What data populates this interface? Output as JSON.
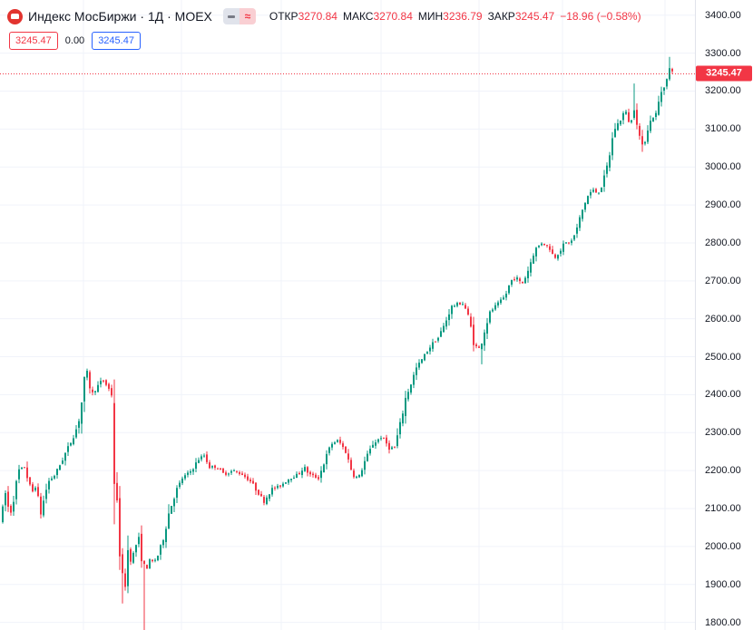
{
  "legend": {
    "icon": "moex-logo-icon",
    "symbol_title": "Индекс МосБиржи · 1Д · MOEX",
    "open_label": "ОТКР",
    "open_value": "3270.84",
    "high_label": "МАКС",
    "high_value": "3270.84",
    "low_label": "МИН",
    "low_value": "3236.79",
    "close_label": "ЗАКР",
    "close_value": "3245.47",
    "change_text": "−18.96 (−0.58%)",
    "box_left": "3245.47",
    "plain_value": "0.00",
    "box_right": "3245.47"
  },
  "colors": {
    "up": "#089981",
    "down": "#f23645",
    "grid": "#f0f3fa",
    "last_price_line": "#f23645"
  },
  "chart_data": {
    "type": "candlestick",
    "title": "Индекс МосБиржи",
    "interval": "1Д",
    "exchange": "MOEX",
    "last_price": 3245.47,
    "ylim": [
      1780,
      3440
    ],
    "y_ticks": [
      1800,
      1900,
      2000,
      2100,
      2200,
      2300,
      2400,
      2500,
      2600,
      2700,
      2800,
      2900,
      3000,
      3100,
      3200,
      3300,
      3400
    ],
    "grid": true,
    "path_close": [
      [
        0,
        2070
      ],
      [
        5,
        2140
      ],
      [
        10,
        2080
      ],
      [
        20,
        2200
      ],
      [
        26,
        2210
      ],
      [
        34,
        2140
      ],
      [
        38,
        2160
      ],
      [
        44,
        2090
      ],
      [
        52,
        2170
      ],
      [
        60,
        2190
      ],
      [
        68,
        2230
      ],
      [
        76,
        2270
      ],
      [
        85,
        2320
      ],
      [
        89,
        2380
      ],
      [
        94,
        2470
      ],
      [
        100,
        2400
      ],
      [
        106,
        2420
      ],
      [
        112,
        2440
      ],
      [
        118,
        2420
      ],
      [
        122,
        2400
      ],
      [
        124,
        2210
      ],
      [
        128,
        2110
      ],
      [
        132,
        1960
      ],
      [
        136,
        1870
      ],
      [
        140,
        1990
      ],
      [
        144,
        1960
      ],
      [
        148,
        2000
      ],
      [
        152,
        2020
      ],
      [
        156,
        1960
      ],
      [
        160,
        1940
      ],
      [
        164,
        1960
      ],
      [
        168,
        1960
      ],
      [
        172,
        1970
      ],
      [
        178,
        2010
      ],
      [
        184,
        2080
      ],
      [
        192,
        2140
      ],
      [
        200,
        2180
      ],
      [
        210,
        2200
      ],
      [
        218,
        2230
      ],
      [
        224,
        2240
      ],
      [
        230,
        2210
      ],
      [
        238,
        2210
      ],
      [
        246,
        2190
      ],
      [
        256,
        2200
      ],
      [
        266,
        2190
      ],
      [
        276,
        2170
      ],
      [
        284,
        2140
      ],
      [
        290,
        2120
      ],
      [
        298,
        2150
      ],
      [
        308,
        2160
      ],
      [
        318,
        2180
      ],
      [
        328,
        2190
      ],
      [
        334,
        2210
      ],
      [
        340,
        2190
      ],
      [
        350,
        2180
      ],
      [
        356,
        2220
      ],
      [
        364,
        2270
      ],
      [
        372,
        2280
      ],
      [
        380,
        2250
      ],
      [
        388,
        2190
      ],
      [
        394,
        2180
      ],
      [
        402,
        2230
      ],
      [
        410,
        2270
      ],
      [
        420,
        2290
      ],
      [
        428,
        2260
      ],
      [
        434,
        2260
      ],
      [
        440,
        2320
      ],
      [
        446,
        2390
      ],
      [
        452,
        2430
      ],
      [
        458,
        2470
      ],
      [
        466,
        2500
      ],
      [
        474,
        2530
      ],
      [
        482,
        2550
      ],
      [
        490,
        2590
      ],
      [
        496,
        2630
      ],
      [
        504,
        2640
      ],
      [
        510,
        2640
      ],
      [
        516,
        2600
      ],
      [
        522,
        2530
      ],
      [
        528,
        2520
      ],
      [
        534,
        2580
      ],
      [
        540,
        2620
      ],
      [
        548,
        2640
      ],
      [
        556,
        2660
      ],
      [
        562,
        2700
      ],
      [
        568,
        2710
      ],
      [
        574,
        2690
      ],
      [
        580,
        2720
      ],
      [
        588,
        2780
      ],
      [
        596,
        2800
      ],
      [
        604,
        2790
      ],
      [
        610,
        2760
      ],
      [
        616,
        2780
      ],
      [
        622,
        2800
      ],
      [
        628,
        2800
      ],
      [
        634,
        2830
      ],
      [
        640,
        2880
      ],
      [
        646,
        2920
      ],
      [
        652,
        2940
      ],
      [
        658,
        2930
      ],
      [
        664,
        2960
      ],
      [
        670,
        3020
      ],
      [
        676,
        3100
      ],
      [
        682,
        3120
      ],
      [
        688,
        3150
      ],
      [
        694,
        3110
      ],
      [
        698,
        3160
      ],
      [
        704,
        3080
      ],
      [
        708,
        3040
      ],
      [
        712,
        3100
      ],
      [
        718,
        3130
      ],
      [
        722,
        3140
      ],
      [
        728,
        3200
      ],
      [
        734,
        3230
      ],
      [
        738,
        3265
      ],
      [
        742,
        3245
      ]
    ],
    "spikes": [
      {
        "x": 134,
        "low": 1850
      },
      {
        "x": 159,
        "low": 1780
      },
      {
        "x": 124,
        "high": 2440
      },
      {
        "x": 529,
        "low": 2480
      },
      {
        "x": 698,
        "high": 3220
      },
      {
        "x": 738,
        "high": 3290
      }
    ]
  }
}
